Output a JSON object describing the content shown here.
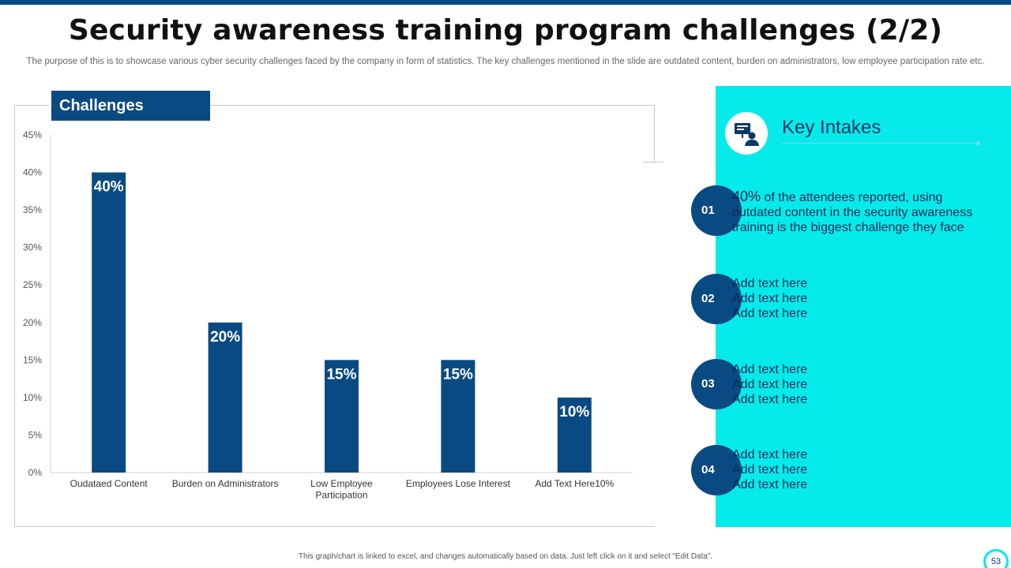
{
  "header": {
    "title": "Security awareness training program challenges (2/2)",
    "subtitle": "The purpose of this is to showcase various cyber security challenges faced by the company in form of statistics. The key challenges mentioned in the slide are outdated content, burden on administrators, low employee participation rate etc."
  },
  "chart_label": "Challenges",
  "chart_data": {
    "type": "bar",
    "title": "Challenges",
    "categories": [
      "Oudataed Content",
      "Burden on Administrators",
      "Low Employee Participation",
      "Employees Lose Interest",
      "Add Text Here10%"
    ],
    "category_lines": [
      [
        "Oudataed Content"
      ],
      [
        "Burden on Administrators"
      ],
      [
        "Low Employee",
        "Participation"
      ],
      [
        "Employees Lose Interest"
      ],
      [
        "Add Text Here10%"
      ]
    ],
    "values": [
      40,
      20,
      15,
      15,
      10
    ],
    "data_labels": [
      "40%",
      "20%",
      "15%",
      "15%",
      "10%"
    ],
    "ylim": [
      0,
      45
    ],
    "yticks": [
      0,
      5,
      10,
      15,
      20,
      25,
      30,
      35,
      40,
      45
    ],
    "ytick_labels": [
      "0%",
      "5%",
      "10%",
      "15%",
      "20%",
      "25%",
      "30%",
      "35%",
      "40%",
      "45%"
    ],
    "xlabel": "",
    "ylabel": "",
    "grid": false,
    "bar_color": "#0a4a82"
  },
  "key_intakes": {
    "heading": "Key Intakes",
    "items": [
      {
        "number": "01",
        "highlight": "40%",
        "text": " of the attendees reported, using outdated content in the security awareness training is the biggest challenge they face"
      },
      {
        "number": "02",
        "lines": [
          "Add text here",
          "Add text here",
          "Add text here"
        ]
      },
      {
        "number": "03",
        "lines": [
          "Add text here",
          "Add text here",
          "Add text here"
        ]
      },
      {
        "number": "04",
        "lines": [
          "Add text here",
          "Add text here",
          "Add text here"
        ]
      }
    ]
  },
  "footer": {
    "note": "This graph/chart is linked to excel, and changes automatically based on data. Just left click on it and select “Edit Data”.",
    "page_number": "53"
  },
  "colors": {
    "navy": "#0a4a82",
    "cyan": "#06eaea"
  }
}
